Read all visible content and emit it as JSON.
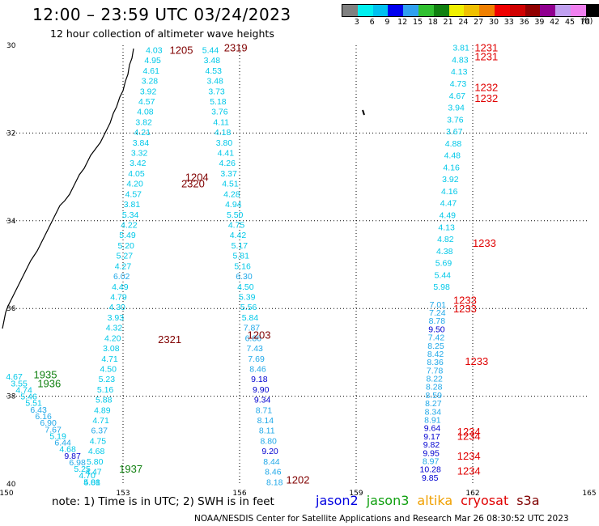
{
  "title": "12:00 – 23:59 UTC 03/24/2023",
  "subtitle": "12 hour collection of altimeter wave heights",
  "legend": {
    "colors": [
      "#808080",
      "#00f0f0",
      "#00c0f0",
      "#0000f0",
      "#30a0f0",
      "#30c030",
      "#108010",
      "#f0f000",
      "#f0c000",
      "#f08000",
      "#f00000",
      "#d00000",
      "#900000",
      "#900090",
      "#c0a0f0",
      "#f080f0",
      "#000000"
    ],
    "labels": [
      "3",
      "6",
      "9",
      "12",
      "15",
      "18",
      "21",
      "24",
      "27",
      "30",
      "33",
      "36",
      "39",
      "42",
      "45",
      "70"
    ],
    "unit": "(ft)"
  },
  "axes": {
    "x_ticks": [
      "150",
      "153",
      "156",
      "159",
      "162",
      "165"
    ],
    "y_ticks": [
      "30",
      "32",
      "34",
      "36",
      "38",
      "40"
    ]
  },
  "tracks": [
    {
      "name": "A",
      "color": "#00c0f0",
      "lon0": 153.8,
      "lat0": 30.1,
      "lon1": 152.2,
      "lat1": 39.95,
      "values": [
        "4.03",
        "4.95",
        "4.61",
        "3.28",
        "3.92",
        "4.57",
        "4.08",
        "3.82",
        "4.21",
        "3.84",
        "3.32",
        "3.42",
        "4.05",
        "4.20",
        "4.57",
        "3.81",
        "5.34",
        "4.22",
        "5.49",
        "5.20",
        "5.27",
        "4.27",
        "6.02",
        "4.49",
        "4.79",
        "4.30",
        "3.93",
        "4.32",
        "4.20",
        "3.08",
        "4.71",
        "4.50",
        "5.23",
        "5.16",
        "5.88",
        "4.89",
        "4.71",
        "6.37",
        "4.75",
        "4.68",
        "5.80",
        "4.47",
        "5.08"
      ]
    },
    {
      "name": "B",
      "color": "#00c0f0",
      "lon0": 155.25,
      "lat0": 30.1,
      "lon1": 156.9,
      "lat1": 39.95,
      "values": [
        "5.44",
        "3.48",
        "4.53",
        "3.48",
        "3.73",
        "5.18",
        "3.76",
        "4.11",
        "4.18",
        "3.80",
        "4.41",
        "4.26",
        "3.37",
        "4.51",
        "4.28",
        "4.94",
        "5.50",
        "4.75",
        "4.42",
        "5.17",
        "5.81",
        "5.16",
        "6.30",
        "4.50",
        "5.39",
        "5.56",
        "5.84",
        "7.87",
        "6.86",
        "7.43",
        "7.69",
        "8.46",
        "9.18",
        "9.90",
        "9.34",
        "8.71",
        "8.14",
        "8.11",
        "8.80",
        "9.20",
        "8.44",
        "8.46",
        "8.18"
      ]
    },
    {
      "name": "C",
      "color": "#00c0f0",
      "lon0": 150.2,
      "lat0": 37.55,
      "lon1": 152.2,
      "lat1": 39.95,
      "values": [
        "4.67",
        "3.55",
        "4.74",
        "5.46",
        "5.51",
        "6.43",
        "6.16",
        "6.90",
        "7.67",
        "5.19",
        "6.44",
        "4.68",
        "9.87",
        "6.98",
        "5.25",
        "4.70",
        "4.81"
      ]
    },
    {
      "name": "D",
      "color": "#00c0f0",
      "lon0": 161.7,
      "lat0": 30.05,
      "lon1": 161.2,
      "lat1": 35.5,
      "values": [
        "3.81",
        "4.83",
        "4.13",
        "4.73",
        "4.67",
        "3.94",
        "3.76",
        "3.67",
        "4.88",
        "4.48",
        "4.16",
        "3.92",
        "4.16",
        "4.47",
        "4.49",
        "4.13",
        "4.82",
        "4.38",
        "5.69",
        "5.44",
        "5.98"
      ]
    },
    {
      "name": "E",
      "color": "#00c0f0",
      "lon0": 161.1,
      "lat0": 35.9,
      "lon1": 160.9,
      "lat1": 39.85,
      "values": [
        "7.01",
        "7.24",
        "8.78",
        "9.50",
        "7.42",
        "8.25",
        "8.42",
        "8.36",
        "7.78",
        "8.22",
        "8.28",
        "8.59",
        "8.27",
        "8.34",
        "8.91",
        "9.64",
        "9.17",
        "9.82",
        "9.95",
        "8.97",
        "10.28",
        "9.85"
      ]
    }
  ],
  "time_labels": [
    {
      "text": "1205",
      "color": "#800000",
      "lon": 154.5,
      "lat": 30.1
    },
    {
      "text": "2319",
      "color": "#800000",
      "lon": 155.9,
      "lat": 30.05
    },
    {
      "text": "1204",
      "color": "#800000",
      "lon": 154.9,
      "lat": 33.0
    },
    {
      "text": "2320",
      "color": "#800000",
      "lon": 154.8,
      "lat": 33.15
    },
    {
      "text": "2321",
      "color": "#800000",
      "lon": 154.2,
      "lat": 36.7
    },
    {
      "text": "1203",
      "color": "#800000",
      "lon": 156.5,
      "lat": 36.6
    },
    {
      "text": "1202",
      "color": "#800000",
      "lon": 157.5,
      "lat": 39.9
    },
    {
      "text": "1935",
      "color": "#108010",
      "lon": 151.0,
      "lat": 37.5
    },
    {
      "text": "1936",
      "color": "#108010",
      "lon": 151.1,
      "lat": 37.7
    },
    {
      "text": "1937",
      "color": "#108010",
      "lon": 153.2,
      "lat": 39.65
    },
    {
      "text": "1231",
      "color": "#e00000",
      "lon": 162.35,
      "lat": 30.05
    },
    {
      "text": "1231",
      "color": "#e00000",
      "lon": 162.35,
      "lat": 30.25
    },
    {
      "text": "1232",
      "color": "#e00000",
      "lon": 162.35,
      "lat": 30.95
    },
    {
      "text": "1232",
      "color": "#e00000",
      "lon": 162.35,
      "lat": 31.2
    },
    {
      "text": "1233",
      "color": "#e00000",
      "lon": 162.3,
      "lat": 34.5
    },
    {
      "text": "1233",
      "color": "#e00000",
      "lon": 161.8,
      "lat": 35.8
    },
    {
      "text": "1233",
      "color": "#e00000",
      "lon": 161.8,
      "lat": 36.0
    },
    {
      "text": "1233",
      "color": "#e00000",
      "lon": 162.1,
      "lat": 37.2
    },
    {
      "text": "1234",
      "color": "#e00000",
      "lon": 161.9,
      "lat": 38.8
    },
    {
      "text": "1234",
      "color": "#e00000",
      "lon": 161.9,
      "lat": 38.9
    },
    {
      "text": "1234",
      "color": "#e00000",
      "lon": 161.9,
      "lat": 39.35
    },
    {
      "text": "1234",
      "color": "#e00000",
      "lon": 161.9,
      "lat": 39.7
    }
  ],
  "note": "note: 1) Time is in UTC; 2) SWH is in feet",
  "satellites": [
    {
      "name": "jason2",
      "color": "#0000e0"
    },
    {
      "name": "jason3",
      "color": "#10a010"
    },
    {
      "name": "altika",
      "color": "#f0a000"
    },
    {
      "name": "cryosat",
      "color": "#e00000"
    },
    {
      "name": "s3a",
      "color": "#800000"
    }
  ],
  "credit": "NOAA/NESDIS Center for Satellite Applications and Research   Mar 26 08:30:52 UTC 2023"
}
